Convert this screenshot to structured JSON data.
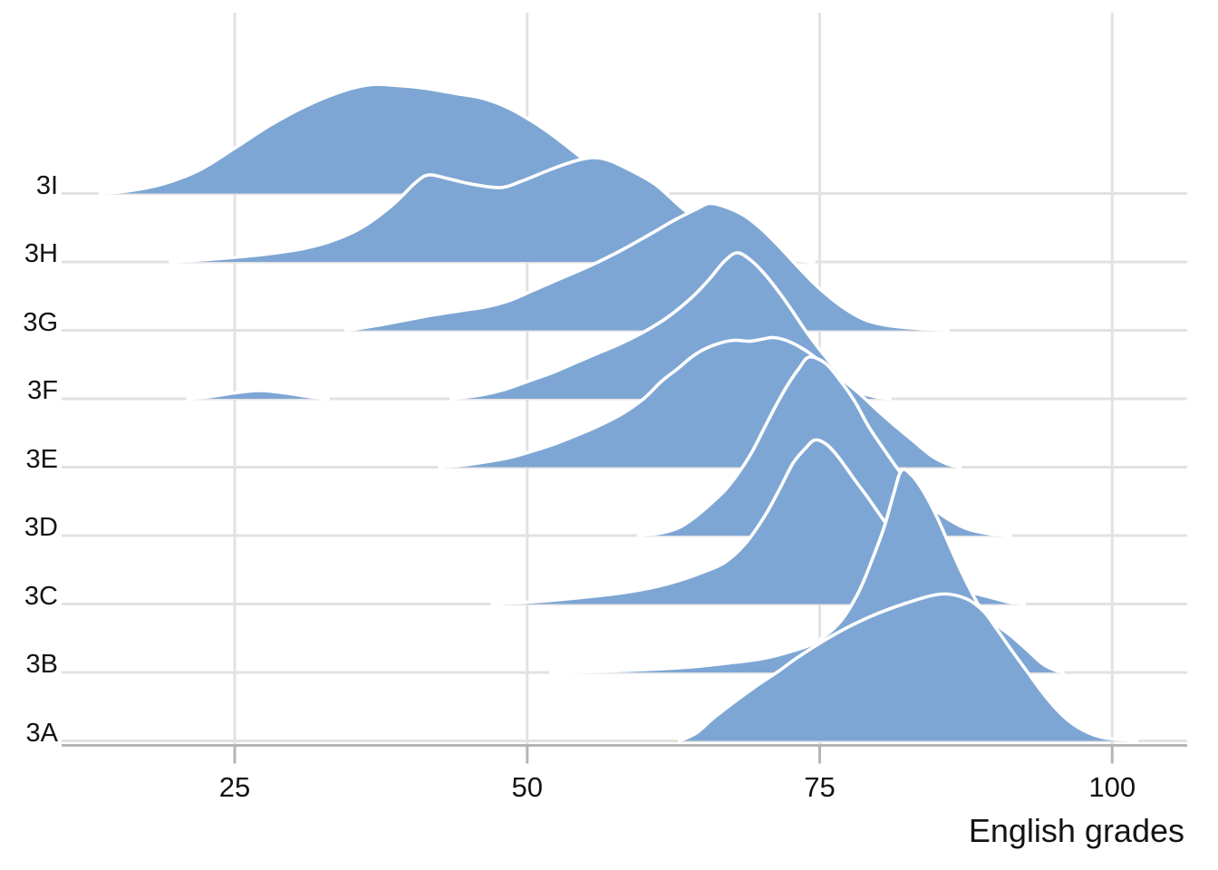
{
  "chart_data": {
    "type": "ridgeline",
    "title": "",
    "xlabel": "English grades",
    "ylabel": "",
    "x_ticks": [
      25,
      50,
      75,
      100
    ],
    "x_domain": [
      10,
      106
    ],
    "grid": true,
    "legend": null,
    "categories_top_to_bottom": [
      "3I",
      "3H",
      "3G",
      "3F",
      "3E",
      "3D",
      "3C",
      "3B",
      "3A"
    ],
    "colors": {
      "ridge_fill": "#7EA6D4",
      "ridge_outline": "#FFFFFF",
      "gridline": "#E2E2E2",
      "axis_line": "#B5B5B5",
      "text": "#141414"
    },
    "note": "Each series is a density ridge over grade values; h is relative density height (render px).",
    "series": [
      {
        "name": "3I",
        "segments": [
          [
            [
              13.5,
              0
            ],
            [
              16,
              3
            ],
            [
              19,
              11
            ],
            [
              22,
              26
            ],
            [
              25,
              50
            ],
            [
              28,
              75
            ],
            [
              31,
              96
            ],
            [
              34,
              112
            ],
            [
              36.6,
              120
            ],
            [
              39,
              119
            ],
            [
              41.3,
              116
            ],
            [
              44,
              110
            ],
            [
              46.2,
              105
            ],
            [
              48.3,
              95
            ],
            [
              50.5,
              79
            ],
            [
              52.2,
              64
            ],
            [
              54,
              46
            ],
            [
              56,
              25
            ],
            [
              57.5,
              15
            ],
            [
              59,
              7
            ],
            [
              60.5,
              2
            ],
            [
              62,
              0
            ]
          ]
        ]
      },
      {
        "name": "3H",
        "segments": [
          [
            [
              19.5,
              0
            ],
            [
              22,
              2
            ],
            [
              25,
              5
            ],
            [
              28,
              9
            ],
            [
              31,
              15
            ],
            [
              33.5,
              24
            ],
            [
              36,
              39
            ],
            [
              38.5,
              63
            ],
            [
              40.5,
              88
            ],
            [
              41.6,
              96
            ],
            [
              43.2,
              92
            ],
            [
              45.2,
              86
            ],
            [
              47.7,
              82
            ],
            [
              49.5,
              89
            ],
            [
              52,
              102
            ],
            [
              54,
              111
            ],
            [
              55.6,
              115
            ],
            [
              57,
              112
            ],
            [
              59,
              100
            ],
            [
              61,
              85
            ],
            [
              63,
              62
            ],
            [
              65,
              41
            ],
            [
              67,
              24
            ],
            [
              69,
              12
            ],
            [
              71,
              5
            ],
            [
              73,
              2
            ],
            [
              74.5,
              0
            ]
          ]
        ]
      },
      {
        "name": "3G",
        "segments": [
          [
            [
              34.5,
              0
            ],
            [
              37,
              5
            ],
            [
              39.5,
              11
            ],
            [
              42,
              17
            ],
            [
              44.5,
              22
            ],
            [
              46.5,
              26
            ],
            [
              48.5,
              33
            ],
            [
              50.5,
              44
            ],
            [
              53,
              58
            ],
            [
              55.5,
              72
            ],
            [
              58,
              88
            ],
            [
              60.5,
              106
            ],
            [
              62.5,
              121
            ],
            [
              64.5,
              134
            ],
            [
              65.6,
              140
            ],
            [
              67,
              136
            ],
            [
              68.5,
              127
            ],
            [
              70,
              112
            ],
            [
              71.5,
              93
            ],
            [
              73,
              72
            ],
            [
              74.5,
              52
            ],
            [
              76,
              35
            ],
            [
              77.5,
              21
            ],
            [
              79,
              11
            ],
            [
              81,
              5
            ],
            [
              83.5,
              2
            ],
            [
              86,
              0
            ]
          ]
        ]
      },
      {
        "name": "3F",
        "segments": [
          [
            [
              21,
              0
            ],
            [
              23,
              2.5
            ],
            [
              25,
              6.5
            ],
            [
              27.2,
              9
            ],
            [
              29.5,
              6
            ],
            [
              31.5,
              2
            ],
            [
              33,
              0
            ]
          ],
          [
            [
              43.5,
              0
            ],
            [
              46,
              4
            ],
            [
              48,
              10
            ],
            [
              50,
              19
            ],
            [
              52,
              28
            ],
            [
              54,
              39
            ],
            [
              56,
              50
            ],
            [
              58,
              61
            ],
            [
              60,
              74
            ],
            [
              62,
              90
            ],
            [
              64,
              111
            ],
            [
              65.5,
              131
            ],
            [
              66.8,
              151
            ],
            [
              67.9,
              161
            ],
            [
              69,
              154
            ],
            [
              70.2,
              139
            ],
            [
              71.5,
              118
            ],
            [
              72.6,
              98
            ],
            [
              73.8,
              75
            ],
            [
              75.2,
              51
            ],
            [
              76.7,
              28
            ],
            [
              78.3,
              9
            ],
            [
              79.5,
              3
            ],
            [
              81,
              0
            ]
          ]
        ]
      },
      {
        "name": "3E",
        "segments": [
          [
            [
              42.5,
              0
            ],
            [
              45,
              3
            ],
            [
              47,
              7
            ],
            [
              48.3,
              10
            ],
            [
              50,
              16
            ],
            [
              52.2,
              25
            ],
            [
              54,
              34
            ],
            [
              56,
              45
            ],
            [
              58,
              58
            ],
            [
              59.9,
              75
            ],
            [
              61.5,
              95
            ],
            [
              62.8,
              108
            ],
            [
              64,
              121
            ],
            [
              65.1,
              130
            ],
            [
              66.5,
              137
            ],
            [
              67.7,
              140
            ],
            [
              69,
              139
            ],
            [
              70,
              141
            ],
            [
              71.1,
              143
            ],
            [
              72.5,
              138
            ],
            [
              74,
              127
            ],
            [
              75.5,
              112
            ],
            [
              77,
              96
            ],
            [
              78.5,
              80
            ],
            [
              80,
              62
            ],
            [
              81.5,
              45
            ],
            [
              83,
              29
            ],
            [
              84.5,
              13
            ],
            [
              85.8,
              4
            ],
            [
              87,
              0
            ]
          ]
        ]
      },
      {
        "name": "3D",
        "segments": [
          [
            [
              59.5,
              0
            ],
            [
              61.5,
              3
            ],
            [
              63,
              9
            ],
            [
              64.3,
              20
            ],
            [
              65.5,
              33
            ],
            [
              66.9,
              50
            ],
            [
              68,
              68
            ],
            [
              69.2,
              92
            ],
            [
              70.2,
              117
            ],
            [
              71.2,
              142
            ],
            [
              72.2,
              165
            ],
            [
              73.2,
              184
            ],
            [
              74.1,
              197
            ],
            [
              75.5,
              190
            ],
            [
              76.7,
              172
            ],
            [
              78,
              148
            ],
            [
              79.2,
              120
            ],
            [
              80.5,
              95
            ],
            [
              81.7,
              73
            ],
            [
              83,
              52
            ],
            [
              84.5,
              32
            ],
            [
              86,
              18
            ],
            [
              87.5,
              8
            ],
            [
              89.5,
              2
            ],
            [
              91.3,
              0
            ]
          ]
        ]
      },
      {
        "name": "3C",
        "segments": [
          [
            [
              47,
              0
            ],
            [
              50,
              2
            ],
            [
              53,
              5
            ],
            [
              56,
              9
            ],
            [
              58.5,
              13
            ],
            [
              61,
              19
            ],
            [
              63,
              26
            ],
            [
              65,
              35
            ],
            [
              66.9,
              46
            ],
            [
              68.6,
              66
            ],
            [
              70.2,
              95
            ],
            [
              71.5,
              125
            ],
            [
              72.7,
              155
            ],
            [
              73.8,
              172
            ],
            [
              74.6,
              181
            ],
            [
              75.6,
              176
            ],
            [
              76.6,
              162
            ],
            [
              78,
              137
            ],
            [
              79.2,
              116
            ],
            [
              80.5,
              92
            ],
            [
              82,
              68
            ],
            [
              83.5,
              48
            ],
            [
              85,
              33
            ],
            [
              86.5,
              21
            ],
            [
              88,
              13
            ],
            [
              89.7,
              7
            ],
            [
              91.2,
              2
            ],
            [
              92.5,
              0
            ]
          ]
        ]
      },
      {
        "name": "3B",
        "segments": [
          [
            [
              52,
              0
            ],
            [
              56,
              1
            ],
            [
              60,
              3
            ],
            [
              64,
              6
            ],
            [
              67,
              10
            ],
            [
              70,
              15
            ],
            [
              72.5,
              23
            ],
            [
              74.6,
              33
            ],
            [
              76.7,
              55
            ],
            [
              78.3,
              88
            ],
            [
              79.5,
              125
            ],
            [
              80.5,
              160
            ],
            [
              81.3,
              196
            ],
            [
              82,
              223
            ],
            [
              82.9,
              217
            ],
            [
              83.9,
              199
            ],
            [
              85,
              172
            ],
            [
              86.1,
              140
            ],
            [
              87.3,
              106
            ],
            [
              88.8,
              70
            ],
            [
              90.2,
              52
            ],
            [
              91.4,
              40
            ],
            [
              92.8,
              24
            ],
            [
              94,
              10
            ],
            [
              95,
              3
            ],
            [
              95.8,
              0
            ]
          ]
        ]
      },
      {
        "name": "3A",
        "segments": [
          [
            [
              63,
              0
            ],
            [
              64.5,
              9
            ],
            [
              66.1,
              27
            ],
            [
              69.2,
              57
            ],
            [
              71.5,
              77
            ],
            [
              73.1,
              92
            ],
            [
              76.2,
              117
            ],
            [
              79.3,
              137
            ],
            [
              82.4,
              152
            ],
            [
              85.4,
              162
            ],
            [
              87.5,
              157
            ],
            [
              89,
              143
            ],
            [
              90.1,
              124
            ],
            [
              91.4,
              100
            ],
            [
              92.7,
              77
            ],
            [
              94,
              54
            ],
            [
              95.3,
              34
            ],
            [
              96.5,
              20
            ],
            [
              97.8,
              10
            ],
            [
              99.1,
              4
            ],
            [
              100.5,
              1.5
            ],
            [
              102.1,
              0
            ]
          ]
        ]
      }
    ]
  }
}
